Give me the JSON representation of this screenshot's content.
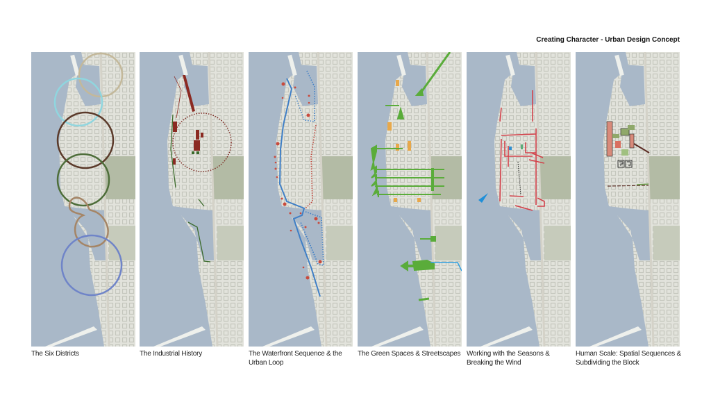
{
  "title": "Creating Character - Urban Design Concept",
  "panels": [
    {
      "caption": "The Six Districts"
    },
    {
      "caption": "The Industrial History"
    },
    {
      "caption": "The Waterfront Sequence & the Urban Loop"
    },
    {
      "caption": "The Green Spaces & Streetscapes"
    },
    {
      "caption": "Working with the Seasons & Breaking the Wind"
    },
    {
      "caption": "Human Scale: Spatial Sequences & Subdividing the Block"
    }
  ],
  "colors": {
    "water": "#a9b8c8",
    "land": "#e2e3dc",
    "park": "#b3bba5",
    "industrial_red": "#8b2a22",
    "loop_blue": "#3f7fc6",
    "green": "#5aac3a",
    "orange": "#e8a84a",
    "street_red": "#d2414a"
  }
}
